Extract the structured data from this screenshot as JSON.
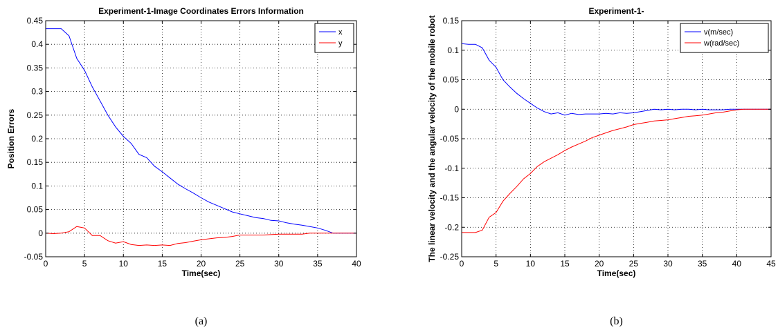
{
  "chart_data": [
    {
      "type": "line",
      "caption": "(a)",
      "title": "Experiment-1-Image Coordinates Errors Information",
      "xlabel": "Time(sec)",
      "ylabel": "Position Errors",
      "xlim": [
        0,
        40
      ],
      "ylim": [
        -0.05,
        0.45
      ],
      "xticks": [
        0,
        5,
        10,
        15,
        20,
        25,
        30,
        35,
        40
      ],
      "yticks": [
        -0.05,
        0,
        0.05,
        0.1,
        0.15,
        0.2,
        0.25,
        0.3,
        0.35,
        0.4,
        0.45
      ],
      "ytick_labels": [
        "-0.05",
        "0",
        "0.05",
        "0.1",
        "0.15",
        "0.2",
        "0.25",
        "0.3",
        "0.35",
        "0.4",
        "0.45"
      ],
      "grid": true,
      "legend_position": "top-right",
      "series": [
        {
          "name": "x",
          "color": "#0000ff",
          "x": [
            0,
            1,
            2,
            3,
            4,
            5,
            6,
            7,
            8,
            9,
            10,
            11,
            12,
            13,
            14,
            15,
            16,
            17,
            18,
            19,
            20,
            21,
            22,
            23,
            24,
            25,
            26,
            27,
            28,
            29,
            30,
            31,
            32,
            33,
            34,
            35,
            36,
            37,
            38,
            39,
            40
          ],
          "y": [
            0.433,
            0.433,
            0.433,
            0.418,
            0.37,
            0.345,
            0.31,
            0.28,
            0.25,
            0.225,
            0.205,
            0.19,
            0.167,
            0.16,
            0.142,
            0.13,
            0.117,
            0.104,
            0.094,
            0.085,
            0.075,
            0.066,
            0.059,
            0.052,
            0.045,
            0.041,
            0.037,
            0.033,
            0.031,
            0.027,
            0.026,
            0.022,
            0.019,
            0.017,
            0.014,
            0.011,
            0.006,
            0.0,
            0.0,
            0.0,
            0.0
          ]
        },
        {
          "name": "y",
          "color": "#ff0000",
          "x": [
            0,
            1,
            2,
            3,
            4,
            5,
            6,
            7,
            8,
            9,
            10,
            11,
            12,
            13,
            14,
            15,
            16,
            17,
            18,
            19,
            20,
            21,
            22,
            23,
            24,
            25,
            26,
            27,
            28,
            29,
            30,
            31,
            32,
            33,
            34,
            35,
            36,
            37,
            38,
            39,
            40
          ],
          "y": [
            0.0,
            -0.001,
            0.0,
            0.003,
            0.014,
            0.011,
            -0.005,
            -0.005,
            -0.016,
            -0.021,
            -0.018,
            -0.024,
            -0.026,
            -0.025,
            -0.026,
            -0.025,
            -0.026,
            -0.022,
            -0.02,
            -0.017,
            -0.014,
            -0.012,
            -0.01,
            -0.009,
            -0.007,
            -0.004,
            -0.004,
            -0.004,
            -0.004,
            -0.003,
            -0.002,
            -0.002,
            -0.002,
            -0.002,
            0.0,
            0.0,
            0.0,
            0.0,
            0.0,
            0.0,
            0.0
          ]
        }
      ]
    },
    {
      "type": "line",
      "caption": "(b)",
      "title": "Experiment-1-",
      "xlabel": "Time(sec)",
      "ylabel": "The linear velocity and the angular velocity of the mobile robot",
      "xlim": [
        0,
        45
      ],
      "ylim": [
        -0.25,
        0.15
      ],
      "xticks": [
        0,
        5,
        10,
        15,
        20,
        25,
        30,
        35,
        40,
        45
      ],
      "yticks": [
        -0.25,
        -0.2,
        -0.15,
        -0.1,
        -0.05,
        0,
        0.05,
        0.1,
        0.15
      ],
      "ytick_labels": [
        "-0.25",
        "-0.2",
        "-0.15",
        "-0.1",
        "-0.05",
        "0",
        "0.05",
        "0.1",
        "0.15"
      ],
      "grid": true,
      "legend_position": "top-right",
      "series": [
        {
          "name": "v(m/sec)",
          "color": "#0000ff",
          "x": [
            0,
            1,
            2,
            3,
            4,
            5,
            6,
            7,
            8,
            9,
            10,
            11,
            12,
            13,
            14,
            15,
            16,
            17,
            18,
            19,
            20,
            21,
            22,
            23,
            24,
            25,
            26,
            27,
            28,
            29,
            30,
            31,
            32,
            33,
            34,
            35,
            36,
            37,
            38,
            39,
            40,
            41,
            42,
            43,
            44,
            45
          ],
          "y": [
            0.111,
            0.11,
            0.11,
            0.104,
            0.083,
            0.071,
            0.05,
            0.038,
            0.027,
            0.018,
            0.01,
            0.002,
            -0.004,
            -0.008,
            -0.006,
            -0.01,
            -0.007,
            -0.009,
            -0.008,
            -0.008,
            -0.008,
            -0.007,
            -0.008,
            -0.006,
            -0.007,
            -0.006,
            -0.004,
            -0.002,
            0.0,
            -0.001,
            0.0,
            -0.001,
            0.0,
            0.0,
            -0.001,
            0.0,
            -0.001,
            -0.001,
            -0.001,
            0.0,
            0.0,
            0.0,
            0.0,
            0.0,
            0.0,
            0.0
          ]
        },
        {
          "name": "w(rad/sec)",
          "color": "#ff0000",
          "x": [
            0,
            1,
            2,
            3,
            4,
            5,
            6,
            7,
            8,
            9,
            10,
            11,
            12,
            13,
            14,
            15,
            16,
            17,
            18,
            19,
            20,
            21,
            22,
            23,
            24,
            25,
            26,
            27,
            28,
            29,
            30,
            31,
            32,
            33,
            34,
            35,
            36,
            37,
            38,
            39,
            40,
            41,
            42,
            43,
            44,
            45
          ],
          "y": [
            -0.209,
            -0.209,
            -0.209,
            -0.205,
            -0.183,
            -0.175,
            -0.156,
            -0.143,
            -0.131,
            -0.118,
            -0.109,
            -0.097,
            -0.089,
            -0.083,
            -0.077,
            -0.07,
            -0.064,
            -0.059,
            -0.054,
            -0.048,
            -0.044,
            -0.04,
            -0.036,
            -0.033,
            -0.03,
            -0.026,
            -0.024,
            -0.022,
            -0.02,
            -0.019,
            -0.018,
            -0.016,
            -0.014,
            -0.012,
            -0.011,
            -0.01,
            -0.008,
            -0.006,
            -0.005,
            -0.003,
            -0.001,
            0.0,
            0.0,
            0.0,
            0.0,
            0.0
          ]
        }
      ]
    }
  ]
}
